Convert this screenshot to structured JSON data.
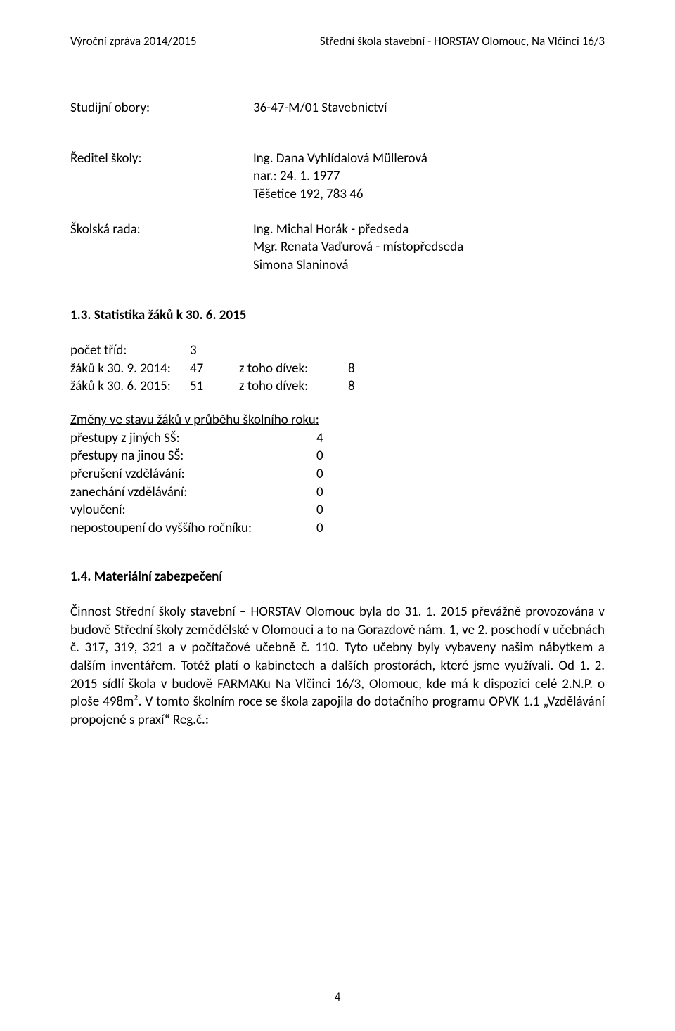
{
  "header": {
    "left": "Výroční zpráva 2014/2015",
    "right": "Střední škola stavební - HORSTAV Olomouc, Na Vlčinci 16/3"
  },
  "studijni_obory": {
    "label": "Studijní obory:",
    "value": "36-47-M/01   Stavebnictví"
  },
  "reditel_skoly": {
    "label": "Ředitel školy:",
    "lines": [
      "Ing. Dana Vyhlídalová Müllerová",
      "nar.: 24. 1. 1977",
      "Těšetice 192, 783 46"
    ]
  },
  "skolska_rada": {
    "label": "Školská rada:",
    "lines": [
      "Ing. Michal Horák - předseda",
      "Mgr. Renata Vaďurová - místopředseda",
      "Simona Slaninová"
    ]
  },
  "stat_heading": "1.3.  Statistika žáků k 30. 6. 2015",
  "stat_rows": [
    {
      "c1": "počet tříd:",
      "c2": "3",
      "c3": "",
      "c4": ""
    },
    {
      "c1": "žáků k 30. 9. 2014:",
      "c2": "47",
      "c3": "z toho dívek:",
      "c4": "8"
    },
    {
      "c1": "žáků k 30. 6. 2015:",
      "c2": "51",
      "c3": "z toho dívek:",
      "c4": "8"
    }
  ],
  "changes_heading": "Změny ve stavu žáků v průběhu školního roku:",
  "changes_rows": [
    {
      "d1": "přestupy z jiných SŠ:",
      "d2": "4"
    },
    {
      "d1": "přestupy na jinou SŠ:",
      "d2": "0"
    },
    {
      "d1": "přerušení vzdělávání:",
      "d2": "0"
    },
    {
      "d1": "zanechání vzdělávání:",
      "d2": "0"
    },
    {
      "d1": "vyloučení:",
      "d2": "0"
    },
    {
      "d1": "nepostoupení do vyššího ročníku:",
      "d2": "0"
    }
  ],
  "material_heading": "1.4. Materiální zabezpečení",
  "body": "Činnost Střední školy stavební – HORSTAV Olomouc byla do 31. 1. 2015 převážně provozována v budově Střední školy zemědělské v Olomouci a to na Gorazdově nám. 1, ve 2. poschodí v učebnách č. 317, 319, 321 a v počítačové učebně č. 110. Tyto učebny byly vybaveny našim nábytkem a dalším inventářem. Totéž platí o kabinetech a dalších prostorách, které jsme využívali. Od 1. 2. 2015 sídlí škola v budově FARMAKu Na Vlčinci 16/3, Olomouc, kde má k dispozici celé 2.N.P. o ploše 498m². V tomto školním roce se škola zapojila do dotačního programu OPVK 1.1 „Vzdělávání propojené s praxí“ Reg.č.:",
  "page_number": "4"
}
